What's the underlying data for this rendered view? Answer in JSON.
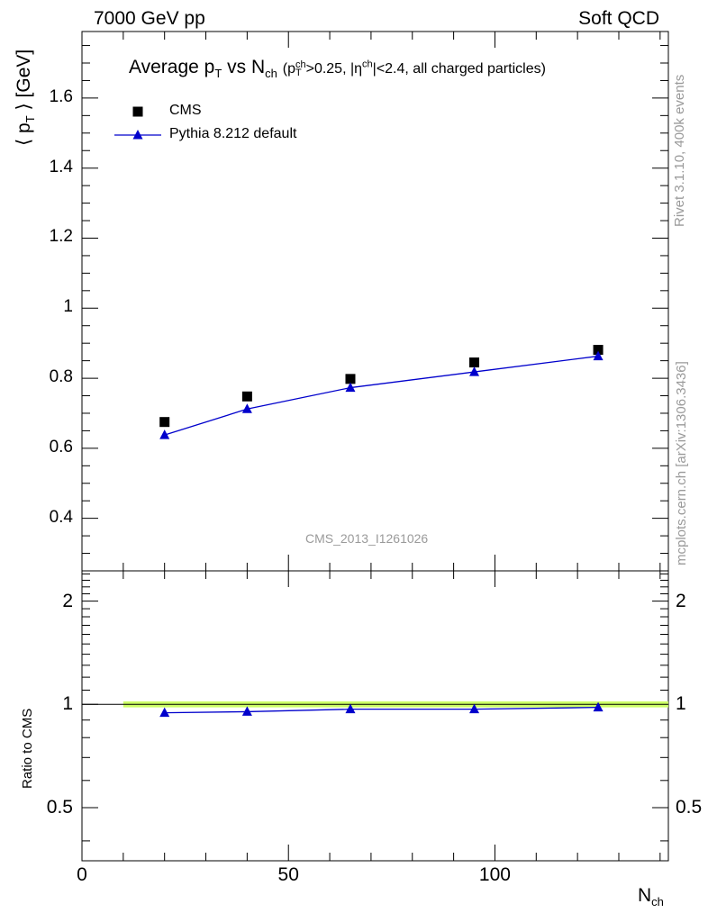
{
  "header": {
    "left": "7000 GeV pp",
    "right": "Soft QCD"
  },
  "side": {
    "rivet": "Rivet 3.1.10,  400k events",
    "mcplots": "mcplots.cern.ch [arXiv:1306.3436]"
  },
  "chart_data": [
    {
      "type": "scatter",
      "title_main": "Average p",
      "title_sub_T": "T",
      "title_vs": " vs N",
      "title_sub_ch": "ch",
      "title_cut": "(p",
      "title_cut_sup": "ch",
      "title_cut_sub": "T",
      "title_cut_rest": ">0.25, |η",
      "title_eta_sup": "ch",
      "title_end": "|<2.4, all charged particles)",
      "ylabel": "⟨ p",
      "ylabel_sub": "T",
      "ylabel_end": " ⟩ [GeV]",
      "watermark": "CMS_2013_I1261026",
      "xlim": [
        0,
        142
      ],
      "ylim": [
        0.25,
        1.79
      ],
      "yticks": [
        0.4,
        0.6,
        0.8,
        1,
        1.2,
        1.4,
        1.6
      ],
      "ytick_labels": [
        "0.4",
        "0.6",
        "0.8",
        "1",
        "1.2",
        "1.4",
        "1.6"
      ],
      "legend_position": "top-left",
      "series": [
        {
          "name": "CMS",
          "color": "#000000",
          "marker": "square",
          "x": [
            20,
            40,
            65,
            95,
            125
          ],
          "y": [
            0.675,
            0.748,
            0.798,
            0.845,
            0.881
          ]
        },
        {
          "name": "Pythia 8.212 default",
          "color": "#0000cc",
          "marker": "triangle",
          "x": [
            20,
            40,
            65,
            95,
            125
          ],
          "y": [
            0.638,
            0.712,
            0.773,
            0.818,
            0.863
          ]
        }
      ]
    },
    {
      "type": "line",
      "ylabel": "Ratio to CMS",
      "xlabel": "N",
      "xlabel_sub": "ch",
      "xlim": [
        0,
        142
      ],
      "ylim": [
        0.35,
        2.45
      ],
      "log_y": true,
      "xticks": [
        0,
        50,
        100
      ],
      "xtick_labels": [
        "0",
        "50",
        "100"
      ],
      "yticks": [
        0.5,
        1,
        2
      ],
      "ytick_labels": [
        "0.5",
        "1",
        "2"
      ],
      "band_color": "#ccff66",
      "series": [
        {
          "name": "Pythia 8.212 default",
          "color": "#0000cc",
          "marker": "triangle",
          "x": [
            20,
            40,
            65,
            95,
            125
          ],
          "y": [
            0.945,
            0.952,
            0.968,
            0.968,
            0.98
          ]
        }
      ]
    }
  ]
}
